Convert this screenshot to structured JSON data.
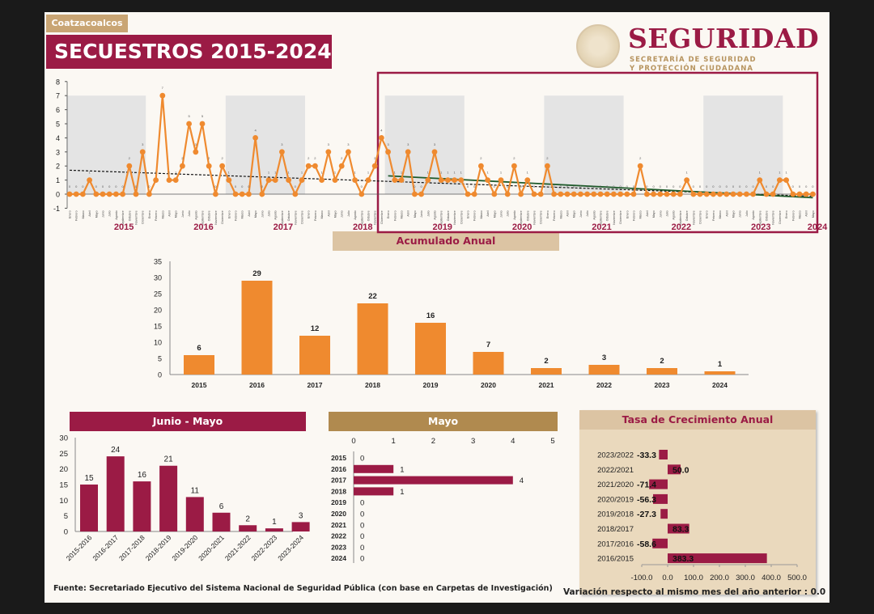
{
  "header": {
    "municipality": "Coatzacoalcos",
    "title": "SECUESTROS 2015-2024",
    "logo_word": "SEGURIDAD",
    "logo_sub1": "SECRETARÍA DE SEGURIDAD",
    "logo_sub2": "Y PROTECCIÓN CIUDADANA"
  },
  "colors": {
    "maroon": "#9b1b45",
    "orange": "#ef8a2f",
    "tan": "#dcc4a3",
    "gold": "#b08a4f",
    "trend_recent": "#1e5a2a"
  },
  "chart_data": [
    {
      "type": "line",
      "months": [
        "Enero",
        "Febrero",
        "Marzo",
        "Abril",
        "Mayo",
        "Junio",
        "Julio",
        "Agosto",
        "Septiembre",
        "Octubre",
        "Noviembre",
        "Diciembre"
      ],
      "years": [
        "2015",
        "2016",
        "2017",
        "2018",
        "2019",
        "2020",
        "2021",
        "2022",
        "2023",
        "2024"
      ],
      "values": [
        0,
        0,
        0,
        1,
        0,
        0,
        0,
        0,
        0,
        2,
        0,
        3,
        0,
        1,
        7,
        1,
        1,
        2,
        5,
        3,
        5,
        2,
        0,
        2,
        1,
        0,
        0,
        0,
        4,
        0,
        1,
        1,
        3,
        1,
        0,
        1,
        2,
        2,
        1,
        3,
        1,
        2,
        3,
        1,
        0,
        1,
        2,
        4,
        3,
        1,
        1,
        3,
        0,
        0,
        1,
        3,
        1,
        1,
        1,
        1,
        0,
        0,
        2,
        1,
        0,
        1,
        0,
        2,
        0,
        1,
        0,
        0,
        2,
        0,
        0,
        0,
        0,
        0,
        0,
        0,
        0,
        0,
        0,
        0,
        0,
        0,
        2,
        0,
        0,
        0,
        0,
        0,
        0,
        1,
        0,
        0,
        0,
        0,
        0,
        0,
        0,
        0,
        0,
        0,
        1,
        0,
        0,
        1,
        1,
        0,
        0,
        0,
        0
      ],
      "ylim": [
        -1,
        8
      ],
      "yticks": [
        -1,
        0,
        1,
        2,
        3,
        4,
        5,
        6,
        7,
        8
      ],
      "trend_lines": [
        "overall dashed trend",
        "2019-2024 trend (green)"
      ],
      "highlight_box": "2019-2024"
    },
    {
      "type": "bar",
      "title": "Acumulado Anual",
      "categories": [
        "2015",
        "2016",
        "2017",
        "2018",
        "2019",
        "2020",
        "2021",
        "2022",
        "2023",
        "2024"
      ],
      "values": [
        6,
        29,
        12,
        22,
        16,
        7,
        2,
        3,
        2,
        1
      ],
      "ylim": [
        0,
        35
      ],
      "yticks": [
        0,
        5,
        10,
        15,
        20,
        25,
        30,
        35
      ]
    },
    {
      "type": "bar",
      "title": "Junio - Mayo",
      "categories": [
        "2015-2016",
        "2016-2017",
        "2017-2018",
        "2018-2019",
        "2019-2020",
        "2020-2021",
        "2021-2022",
        "2022-2023",
        "2023-2024"
      ],
      "values": [
        15,
        24,
        16,
        21,
        11,
        6,
        2,
        1,
        3
      ],
      "ylim": [
        0,
        30
      ],
      "yticks": [
        0,
        5,
        10,
        15,
        20,
        25,
        30
      ]
    },
    {
      "type": "bar",
      "orientation": "horizontal",
      "title": "Mayo",
      "categories": [
        "2015",
        "2016",
        "2017",
        "2018",
        "2019",
        "2020",
        "2021",
        "2022",
        "2023",
        "2024"
      ],
      "values": [
        0,
        1,
        4,
        1,
        0,
        0,
        0,
        0,
        0,
        0
      ],
      "xlim": [
        0,
        5
      ],
      "xticks": [
        0,
        1,
        2,
        3,
        4,
        5
      ]
    },
    {
      "type": "bar",
      "orientation": "horizontal",
      "title": "Tasa de Crecimiento Anual",
      "categories": [
        "2023/2022",
        "2022/2021",
        "2021/2020",
        "2020/2019",
        "2019/2018",
        "2018/2017",
        "2017/2016",
        "2016/2015"
      ],
      "values": [
        -33.3,
        50.0,
        -71.4,
        -56.3,
        -27.3,
        83.3,
        -58.6,
        383.3
      ],
      "labels": [
        "-33.3",
        "50.0",
        "-71.4",
        "-56.3",
        "-27.3",
        "83.3",
        "-58.6",
        "383.3"
      ],
      "xlim": [
        -100,
        500
      ],
      "xticks": [
        "-100.0",
        "0.0",
        "100.0",
        "200.0",
        "300.0",
        "400.0",
        "500.0"
      ]
    }
  ],
  "footer": {
    "source": "Fuente: Secretariado Ejecutivo del Sistema Nacional de Seguridad Pública (con base en Carpetas de Investigación)",
    "variation": "Variación respecto al mismo mes del año anterior : 0.0"
  }
}
